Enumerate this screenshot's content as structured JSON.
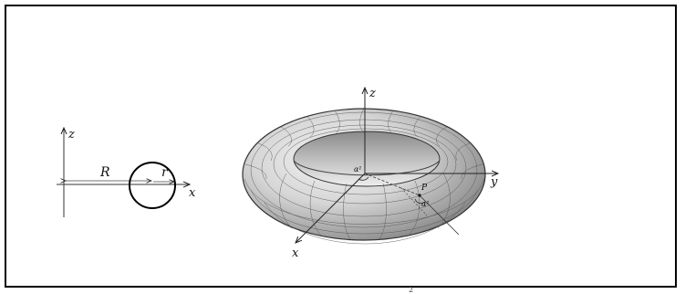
{
  "cross_section": {
    "axis_z_label": "z",
    "axis_x_label": "x",
    "major_radius_label": "R",
    "minor_radius_label": "r"
  },
  "torus": {
    "axis_z_label": "z",
    "axis_y_label": "y",
    "axis_x_label": "x",
    "point_label": "P",
    "angle1_label": "α¹",
    "angle2_label": "α²"
  },
  "footer_mark": "2"
}
